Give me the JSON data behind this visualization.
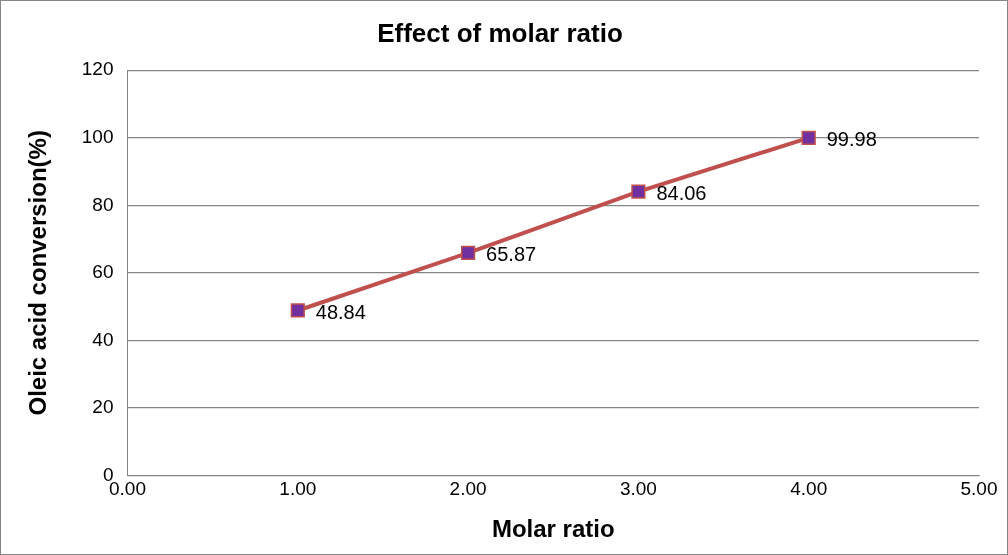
{
  "chart_data": {
    "type": "line",
    "title": "Effect of molar ratio",
    "xlabel": "Molar ratio",
    "ylabel": "Oleic acid conversion(%)",
    "x": [
      1,
      2,
      3,
      4
    ],
    "series": [
      {
        "color": "#c0504d",
        "colors": [
          "#7030a0",
          "#7030a0",
          "#7030a0",
          "#7030a0"
        ],
        "values": [
          48.84,
          65.87,
          84.06,
          99.98
        ]
      }
    ],
    "xlim": [
      0,
      5
    ],
    "xticks": [
      {
        "value": 0,
        "label": "0.00"
      },
      {
        "value": 1,
        "label": "1.00"
      },
      {
        "value": 2,
        "label": "2.00"
      },
      {
        "value": 3,
        "label": "3.00"
      },
      {
        "value": 4,
        "label": "4.00"
      },
      {
        "value": 5,
        "label": "5.00"
      }
    ],
    "ylim": [
      0,
      120
    ],
    "yticks": [
      0,
      20,
      40,
      60,
      80,
      100,
      120
    ],
    "grid": "y",
    "legend": false,
    "marker": "square",
    "line_style": "solid",
    "data_labels": true
  }
}
